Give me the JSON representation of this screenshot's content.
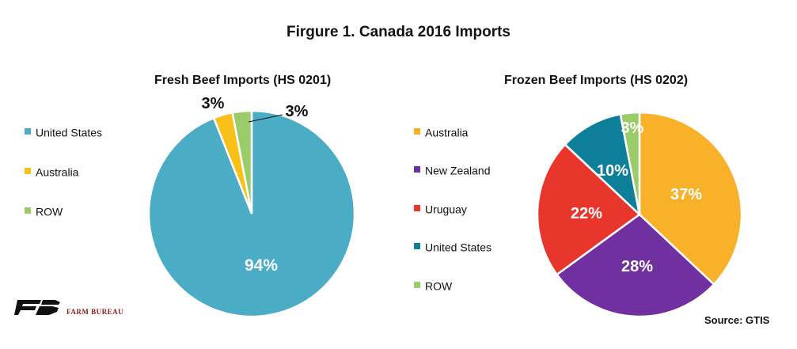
{
  "title": "Firgure 1. Canada 2016 Imports",
  "source": "Source: GTIS",
  "logo": {
    "text": "FARM BUREAU",
    "mark": "FB"
  },
  "chart_data": [
    {
      "type": "pie",
      "title": "Fresh Beef Imports (HS 0201)",
      "labels": [
        "United States",
        "Australia",
        "ROW"
      ],
      "values": [
        94,
        3,
        3
      ],
      "value_labels": [
        "94%",
        "3%",
        "3%"
      ],
      "colors": [
        "#4BACC6",
        "#F9C01A",
        "#9BCC6A"
      ],
      "legend": "left"
    },
    {
      "type": "pie",
      "title": "Frozen Beef Imports (HS 0202)",
      "labels": [
        "Australia",
        "New Zealand",
        "Uruguay",
        "United States",
        "ROW"
      ],
      "values": [
        37,
        28,
        22,
        10,
        3
      ],
      "value_labels": [
        "37%",
        "28%",
        "22%",
        "10%",
        "3%"
      ],
      "colors": [
        "#F9B12A",
        "#7030A0",
        "#E9362C",
        "#0E7F98",
        "#9BCC6A"
      ],
      "legend": "left"
    }
  ]
}
